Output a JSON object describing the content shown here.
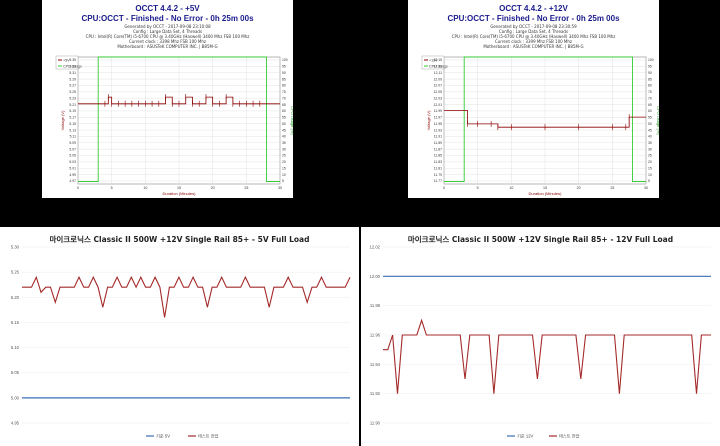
{
  "colors": {
    "voltage": "#8b0000",
    "cpu": "#33cc33",
    "grid": "#d0d0d0",
    "kr_standard": "#3a6fb5",
    "kr_measured": "#a42a2a",
    "occt_title": "#1a1a8c"
  },
  "occt_panels": [
    {
      "title": "OCCT 4.4.2 - +5V",
      "subtitle": "CPU:OCCT - Finished - No Error - 0h 25m 00s",
      "meta": [
        "Generated by OCCT - 2017-09-08 23:10:08",
        "Config : Large Data Set, 4 Threads",
        "CPU : Intel(R) Core(TM) i5-6700 CPU @ 3.40GHz (Haswell) 3400 Mhz FSB 100 Mhz",
        "Current clock : 3398 Mhz FSB 100 Mhz",
        "Motherboard : ASUSTeK COMPUTER INC. | B85M-G"
      ],
      "legend": [
        "+5V",
        "CPU Usage"
      ],
      "ylabel": "Voltage (V)",
      "y2label": "CPU Usage (%)",
      "xlabel": "Duration (Minutes)",
      "y_ticks": [
        "5.35",
        "5.33",
        "5.31",
        "5.29",
        "5.27",
        "5.25",
        "5.23",
        "5.21",
        "5.19",
        "5.17",
        "5.15",
        "5.13",
        "5.11",
        "5.09",
        "5.07",
        "5.05",
        "5.03",
        "5.01",
        "4.99",
        "4.97"
      ],
      "y2_ticks": [
        "100",
        "95",
        "90",
        "85",
        "80",
        "75",
        "70",
        "65",
        "60",
        "55",
        "50",
        "45",
        "40",
        "35",
        "30",
        "25",
        "20",
        "15",
        "10",
        "5"
      ],
      "x_ticks": [
        "0",
        "5",
        "10",
        "15",
        "20",
        "25",
        "30"
      ]
    },
    {
      "title": "OCCT 4.4.2 - +12V",
      "subtitle": "CPU:OCCT - Finished - No Error - 0h 25m 00s",
      "meta": [
        "Generated by OCCT - 2017-09-08 23:30:59",
        "Config : Large Data Set, 4 Threads",
        "CPU : Intel(R) Core(TM) i5-6700 CPU @ 3.40GHz (Haswell) 3400 Mhz FSB 100 Mhz",
        "Current clock : 3399 Mhz FSB 100 Mhz",
        "Motherboard : ASUSTeK COMPUTER INC. | B85M-G"
      ],
      "legend": [
        "+12V",
        "CPU Usage"
      ],
      "ylabel": "Voltage (V)",
      "y2label": "CPU Usage (%)",
      "xlabel": "Duration (Minutes)",
      "y_ticks": [
        "12.15",
        "12.13",
        "12.11",
        "12.09",
        "12.07",
        "12.05",
        "12.03",
        "12.01",
        "11.99",
        "11.97",
        "11.95",
        "11.93",
        "11.91",
        "11.89",
        "11.87",
        "11.85",
        "11.83",
        "11.81",
        "11.79",
        "11.77"
      ],
      "y2_ticks": [
        "100",
        "95",
        "90",
        "85",
        "80",
        "75",
        "70",
        "65",
        "60",
        "55",
        "50",
        "45",
        "40",
        "35",
        "30",
        "25",
        "20",
        "15",
        "10",
        "5"
      ],
      "x_ticks": [
        "0",
        "5",
        "10",
        "15",
        "20",
        "25",
        "30"
      ]
    }
  ],
  "kr_panels": [
    {
      "title": "마이크로닉스 Classic II 500W +12V Single Rail 85+ - 5V Full Load",
      "y_ticks": [
        "5.30",
        "5.25",
        "5.20",
        "5.15",
        "5.10",
        "5.05",
        "5.00",
        "4.95"
      ],
      "legend": [
        "기준 5V",
        "테스트 전압"
      ]
    },
    {
      "title": "마이크로닉스 Classic II 500W +12V Single Rail 85+ - 12V Full Load",
      "y_ticks": [
        "12.02",
        "12.00",
        "11.98",
        "11.96",
        "11.94",
        "11.92",
        "11.90"
      ],
      "legend": [
        "기준 12V",
        "테스트 전압"
      ]
    }
  ],
  "chart_data": [
    {
      "type": "line",
      "title": "OCCT 4.4.2 - +5V",
      "xlabel": "Duration (Minutes)",
      "ylabel": "Voltage (V)",
      "y2label": "CPU Usage (%)",
      "xlim": [
        0,
        30
      ],
      "ylim": [
        4.97,
        5.35
      ],
      "y2lim": [
        0,
        100
      ],
      "series": [
        {
          "name": "+5V",
          "x": [
            0,
            4,
            4.5,
            5,
            6,
            7,
            8,
            9,
            10,
            11,
            12,
            13,
            14,
            15,
            16,
            17,
            18,
            19,
            20,
            21,
            22,
            23,
            24,
            25,
            26,
            27,
            28,
            29,
            30
          ],
          "values": [
            5.21,
            5.21,
            5.23,
            5.21,
            5.21,
            5.21,
            5.21,
            5.21,
            5.21,
            5.21,
            5.21,
            5.23,
            5.21,
            5.21,
            5.23,
            5.21,
            5.21,
            5.23,
            5.21,
            5.21,
            5.23,
            5.21,
            5.21,
            5.21,
            5.21,
            5.21,
            5.21,
            5.21,
            5.21
          ]
        },
        {
          "name": "CPU Usage",
          "x": [
            0,
            3,
            3,
            28,
            28,
            30
          ],
          "values": [
            2,
            2,
            100,
            100,
            2,
            2
          ]
        }
      ]
    },
    {
      "type": "line",
      "title": "OCCT 4.4.2 - +12V",
      "xlabel": "Duration (Minutes)",
      "ylabel": "Voltage (V)",
      "y2label": "CPU Usage (%)",
      "xlim": [
        0,
        30
      ],
      "ylim": [
        11.77,
        12.15
      ],
      "y2lim": [
        0,
        100
      ],
      "series": [
        {
          "name": "+12V",
          "x": [
            0,
            3,
            3.5,
            5,
            7,
            8,
            10,
            15,
            20,
            25,
            27,
            27.5,
            28,
            29,
            30
          ],
          "values": [
            11.99,
            11.99,
            11.95,
            11.95,
            11.95,
            11.94,
            11.94,
            11.94,
            11.94,
            11.94,
            11.94,
            11.97,
            11.97,
            11.97,
            11.97
          ]
        },
        {
          "name": "CPU Usage",
          "x": [
            0,
            3,
            3,
            28,
            28,
            30
          ],
          "values": [
            2,
            2,
            100,
            100,
            2,
            2
          ]
        }
      ]
    },
    {
      "type": "line",
      "title": "마이크로닉스 Classic II 500W +12V Single Rail 85+ - 5V Full Load",
      "ylim": [
        4.95,
        5.3
      ],
      "series": [
        {
          "name": "기준 5V",
          "values": [
            5.0,
            5.0
          ]
        },
        {
          "name": "테스트 전압",
          "values": [
            5.22,
            5.22,
            5.22,
            5.24,
            5.21,
            5.22,
            5.22,
            5.19,
            5.22,
            5.22,
            5.22,
            5.22,
            5.24,
            5.22,
            5.22,
            5.24,
            5.22,
            5.18,
            5.22,
            5.22,
            5.24,
            5.22,
            5.22,
            5.24,
            5.22,
            5.24,
            5.22,
            5.22,
            5.24,
            5.22,
            5.16,
            5.22,
            5.22,
            5.24,
            5.22,
            5.22,
            5.24,
            5.22,
            5.22,
            5.18,
            5.22,
            5.22,
            5.24,
            5.22,
            5.22,
            5.22,
            5.22,
            5.24,
            5.22,
            5.22,
            5.22,
            5.22,
            5.18,
            5.22,
            5.22,
            5.22,
            5.24,
            5.22,
            5.22,
            5.22,
            5.19,
            5.22,
            5.22,
            5.24,
            5.22,
            5.22,
            5.22,
            5.22,
            5.22,
            5.24
          ]
        }
      ]
    },
    {
      "type": "line",
      "title": "마이크로닉스 Classic II 500W +12V Single Rail 85+ - 12V Full Load",
      "ylim": [
        11.9,
        12.02
      ],
      "series": [
        {
          "name": "기준 12V",
          "values": [
            12.0,
            12.0
          ]
        },
        {
          "name": "테스트 전압",
          "values": [
            11.95,
            11.95,
            11.96,
            11.92,
            11.96,
            11.96,
            11.96,
            11.96,
            11.97,
            11.96,
            11.96,
            11.96,
            11.96,
            11.96,
            11.96,
            11.96,
            11.96,
            11.93,
            11.96,
            11.96,
            11.96,
            11.96,
            11.96,
            11.92,
            11.96,
            11.96,
            11.96,
            11.96,
            11.96,
            11.96,
            11.96,
            11.96,
            11.93,
            11.96,
            11.96,
            11.96,
            11.96,
            11.96,
            11.96,
            11.96,
            11.96,
            11.93,
            11.96,
            11.96,
            11.96,
            11.96,
            11.96,
            11.96,
            11.96,
            11.92,
            11.96,
            11.96,
            11.96,
            11.96,
            11.96,
            11.96,
            11.96,
            11.96,
            11.96,
            11.96,
            11.96,
            11.96,
            11.96,
            11.96,
            11.96,
            11.92,
            11.96,
            11.96,
            11.96
          ]
        }
      ]
    }
  ]
}
